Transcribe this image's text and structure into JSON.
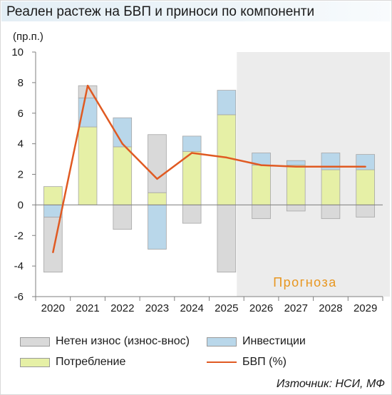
{
  "title": "Реален растеж на БВП и приноси по компоненти",
  "source": "Източник: НСИ, МФ",
  "chart_data": {
    "type": "bar",
    "stacked": true,
    "unit_label": "(пр.п.)",
    "categories": [
      "2020",
      "2021",
      "2022",
      "2023",
      "2024",
      "2025",
      "2026",
      "2027",
      "2028",
      "2029"
    ],
    "series": [
      {
        "name": "Потребление",
        "color": "#e6f0a6",
        "values": [
          1.2,
          5.1,
          3.8,
          0.8,
          3.5,
          5.9,
          2.6,
          2.6,
          2.3,
          2.3
        ]
      },
      {
        "name": "Инвестиции",
        "color": "#b9d7ea",
        "values": [
          -0.8,
          1.9,
          1.9,
          -2.9,
          1.0,
          1.6,
          0.8,
          0.3,
          1.1,
          1.0
        ]
      },
      {
        "name": "Нетен износ (износ-внос)",
        "color": "#d9d9d9",
        "values": [
          -3.6,
          0.8,
          -1.6,
          3.8,
          -1.2,
          -4.4,
          -0.9,
          -0.4,
          -0.9,
          -0.8
        ]
      }
    ],
    "line": {
      "name": "БВП (%)",
      "color": "#e05a22",
      "values": [
        -3.1,
        7.8,
        4.0,
        1.7,
        3.4,
        3.1,
        2.6,
        2.5,
        2.5,
        2.5
      ]
    },
    "ylim": [
      -6,
      10
    ],
    "yticks": [
      "-6",
      "-4",
      "-2",
      "0",
      "2",
      "4",
      "6",
      "8",
      "10"
    ],
    "forecast_start": "2026",
    "forecast_label": "Прогноза",
    "forecast_label_color": "#e8961f",
    "forecast_shade": "#ececec",
    "grid": false,
    "legend_position": "bottom"
  }
}
